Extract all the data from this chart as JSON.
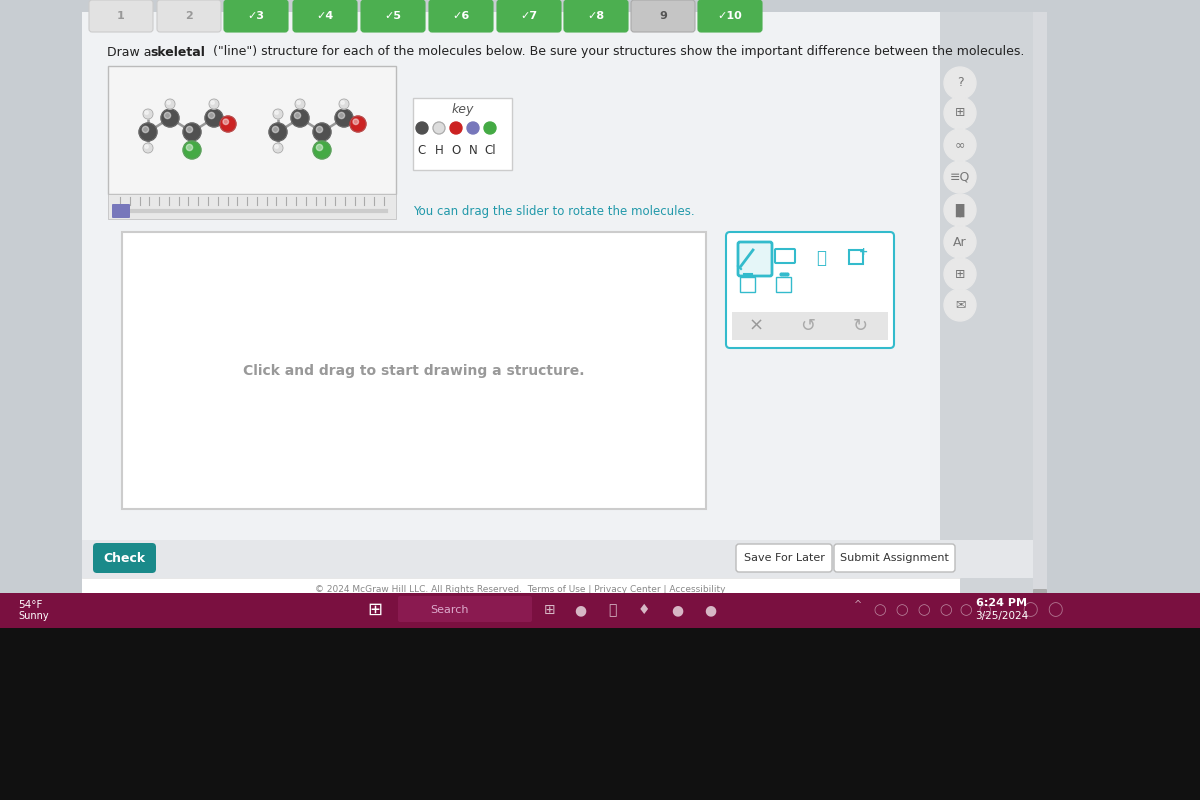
{
  "bg_color": "#c8cdd2",
  "content_bg": "#f0f2f4",
  "white": "#ffffff",
  "tab_numbers": [
    "1",
    "2",
    "3",
    "4",
    "5",
    "6",
    "7",
    "8",
    "9",
    "10"
  ],
  "tab_checked": [
    false,
    false,
    true,
    true,
    true,
    true,
    true,
    true,
    false,
    true
  ],
  "tab_active_idx": 8,
  "tab_green": "#4caf50",
  "tab_active_color": "#c5c5c5",
  "tab_inactive_color": "#e2e2e2",
  "tab_inactive_text": "#999999",
  "instruction_normal": "Draw a  (\"line\") structure for each of the molecules below. Be sure your structures show the important difference between the molecules.",
  "instruction_bold": "skeletal",
  "mol_box_bg": "#f5f5f5",
  "key_title": "key",
  "key_atoms": [
    "C",
    "H",
    "O",
    "N",
    "Cl"
  ],
  "key_colors": [
    "#505050",
    "#dddddd",
    "#cc2222",
    "#7777bb",
    "#44aa44"
  ],
  "slider_text": "You can drag the slider to rotate the molecules.",
  "slider_text_color": "#2299aa",
  "draw_text": "Click and drag to start drawing a structure.",
  "draw_text_color": "#999999",
  "toolbar_border": "#33bbcc",
  "toolbar_sel_bg": "#e5f6f8",
  "bottom_bg": "#e5e7ea",
  "check_color": "#1a8a8a",
  "save_text": "Save For Later",
  "submit_text": "Submit Assignment",
  "footer_text": "© 2024 McGraw Hill LLC. All Rights Reserved.  Terms of Use | Privacy Center | Accessibility",
  "taskbar_bg": "#7a1040",
  "time_text": "6:24 PM",
  "date_text": "3/25/2024",
  "temp_text": "54°F",
  "weather_text": "Sunny",
  "sidebar_icon_bg": "#e8e8e8",
  "sidebar_icon_color": "#777777"
}
